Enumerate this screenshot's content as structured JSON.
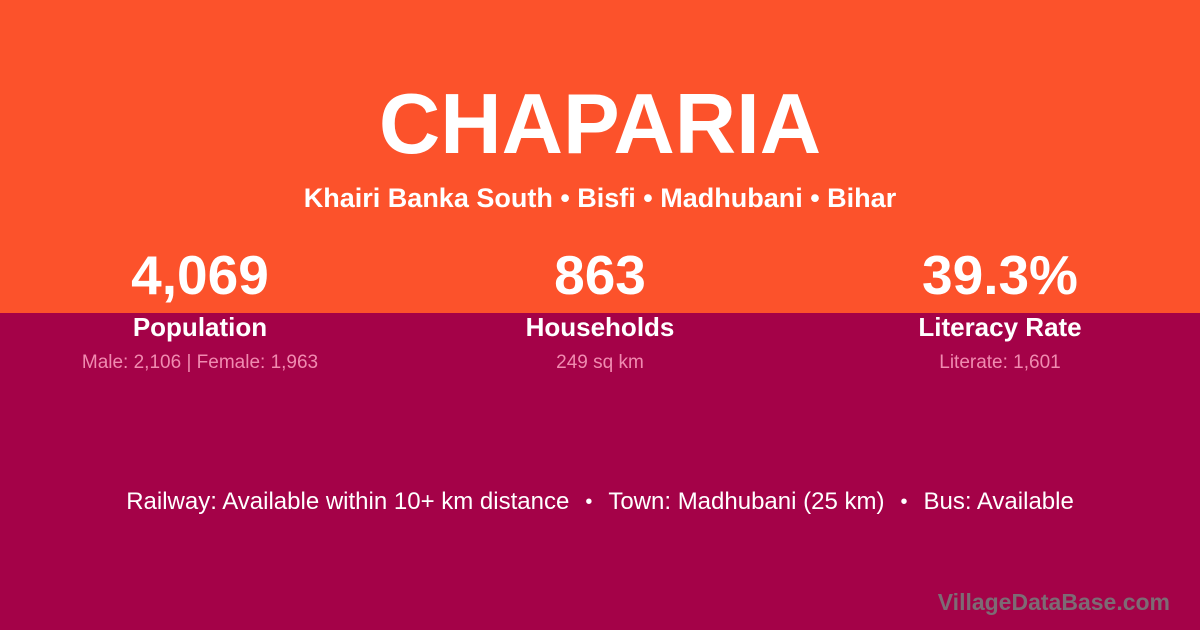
{
  "header": {
    "title": "CHAPARIA",
    "subtitle": "Khairi Banka South • Bisfi • Madhubani • Bihar"
  },
  "stats": [
    {
      "value": "4,069",
      "label": "Population",
      "detail": "Male: 2,106 | Female: 1,963"
    },
    {
      "value": "863",
      "label": "Households",
      "detail": "249 sq km"
    },
    {
      "value": "39.3%",
      "label": "Literacy Rate",
      "detail": "Literate: 1,601"
    }
  ],
  "amenities": {
    "railway": "Railway: Available within 10+ km distance",
    "town": "Town: Madhubani (25 km)",
    "bus": "Bus: Available",
    "separator": "•"
  },
  "watermark": {
    "text": "VillageDataBase.com"
  },
  "colors": {
    "top_background": "#FC522B",
    "bottom_background": "#A40248",
    "text_primary": "#FFFFFF",
    "text_detail_pink": "#F08BB0",
    "watermark_gray": "#7D6B74"
  }
}
